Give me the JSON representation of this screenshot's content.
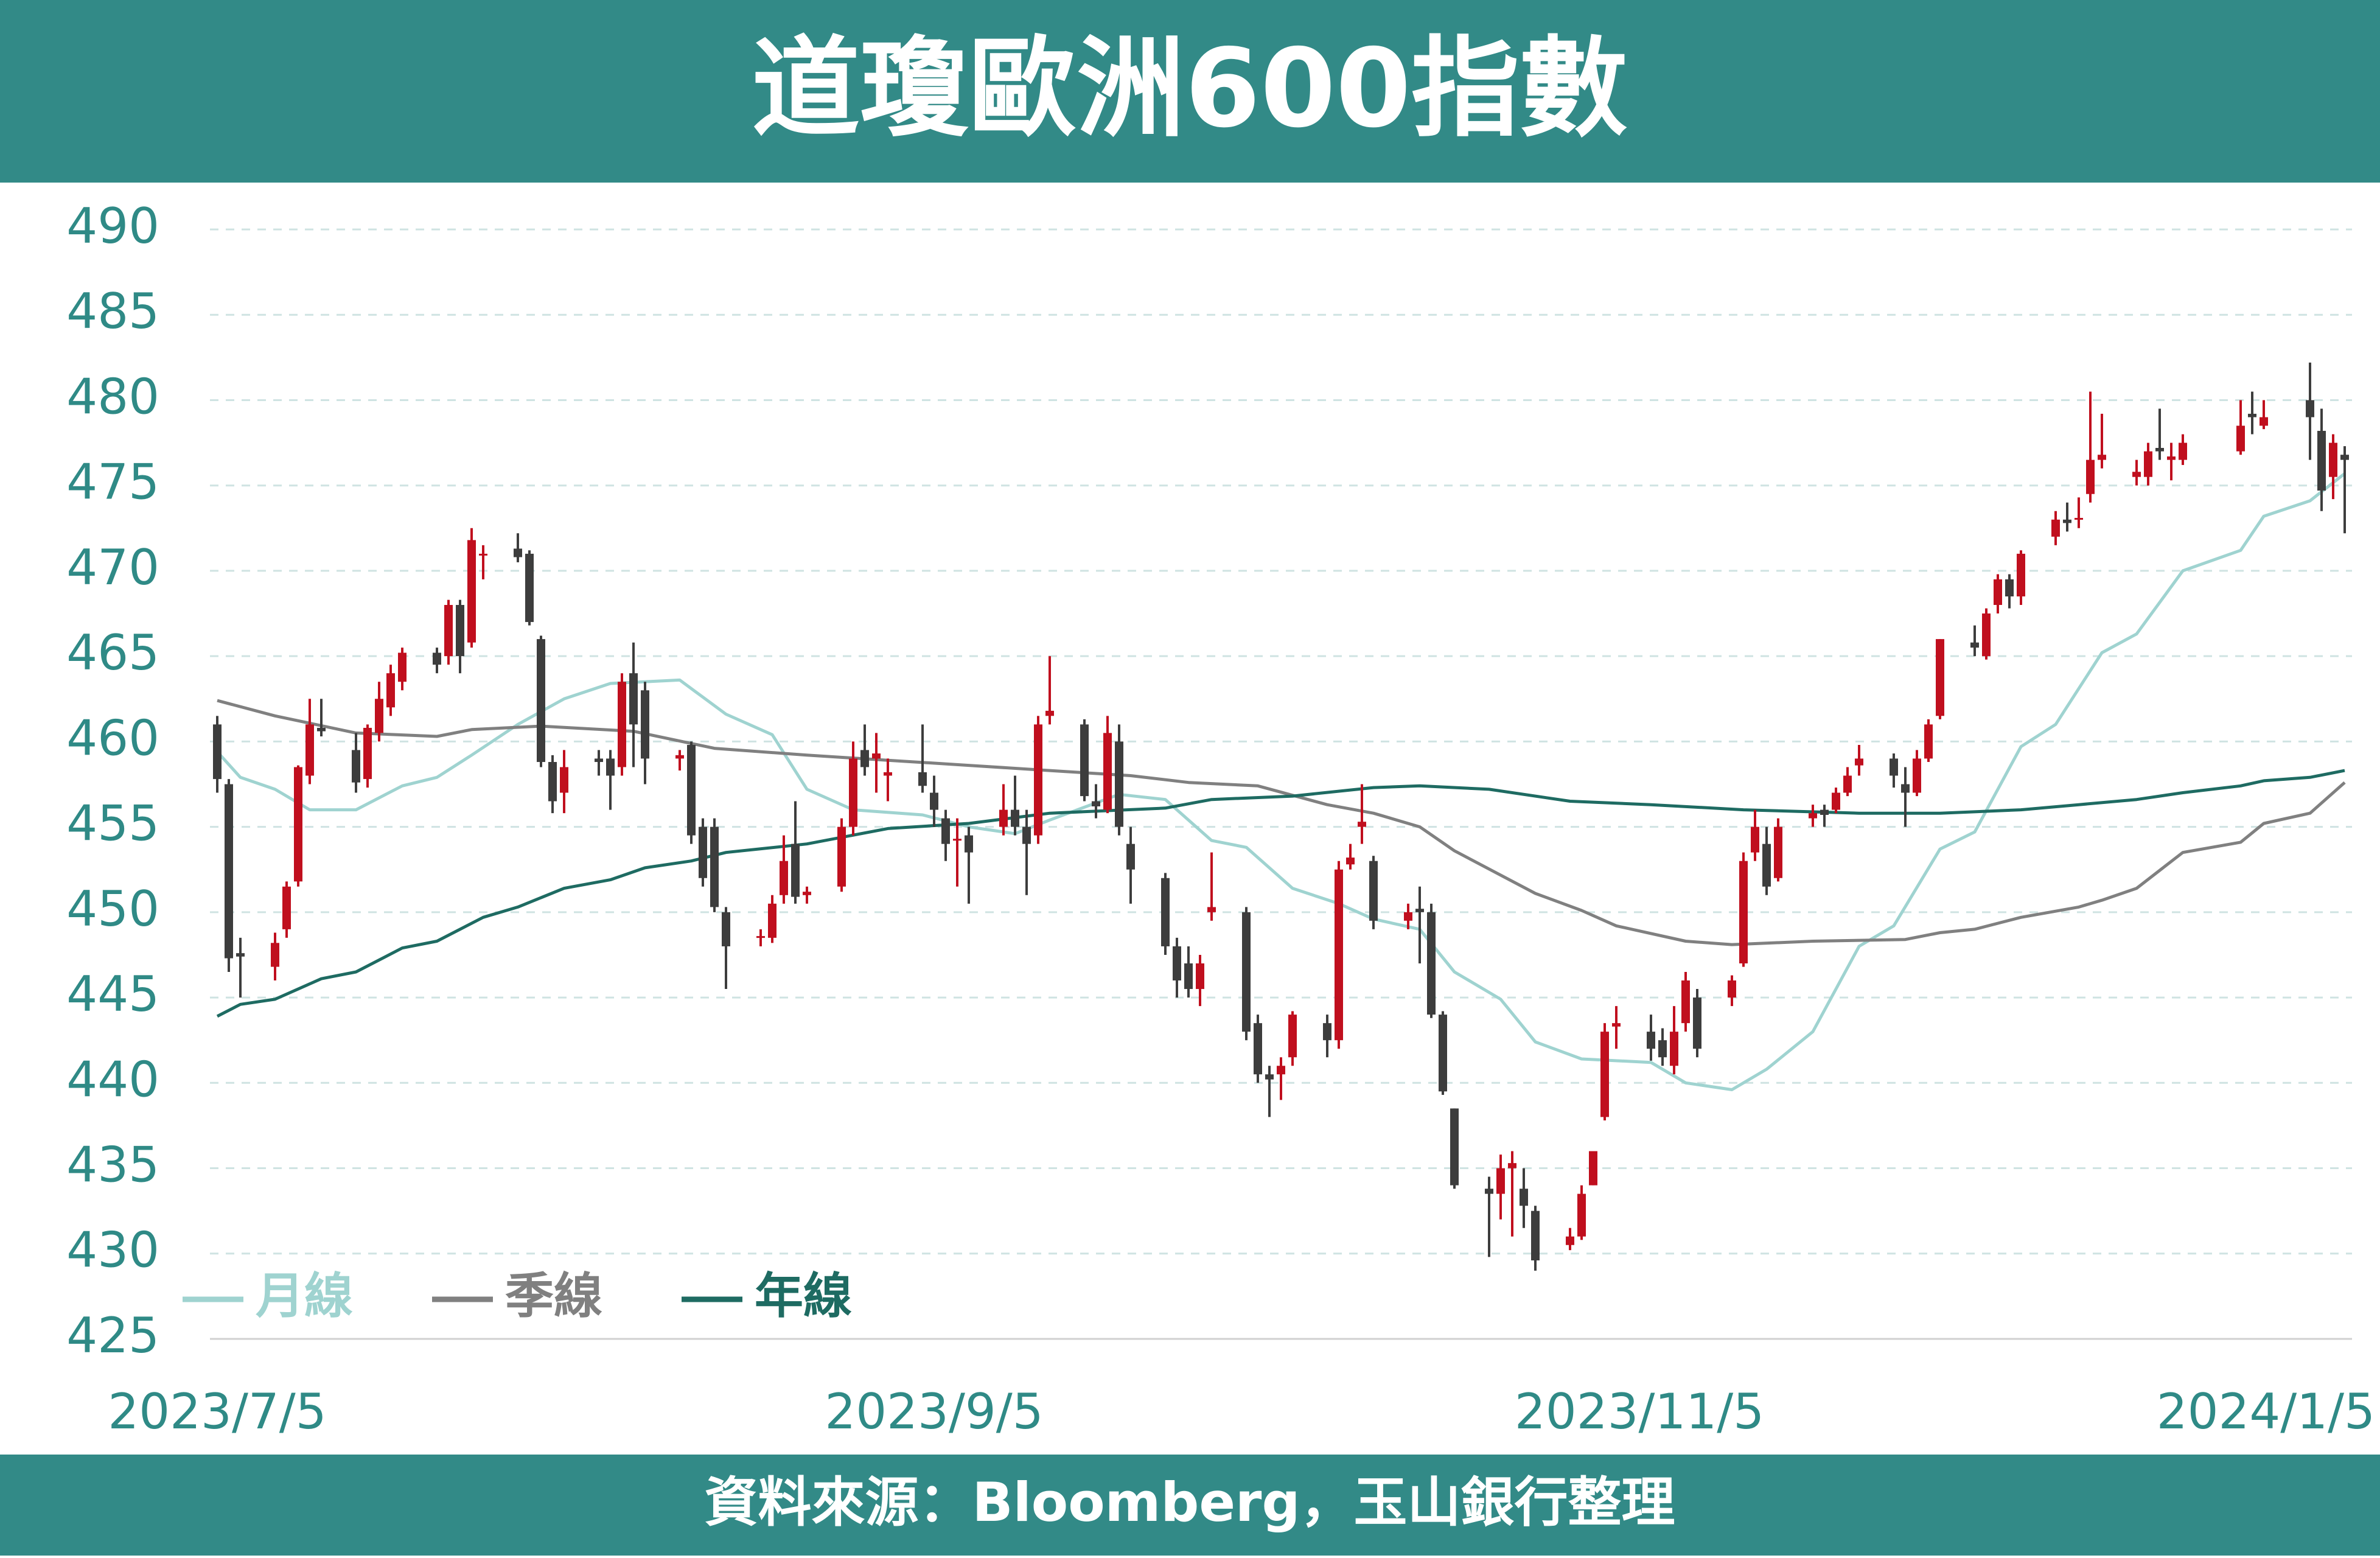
{
  "chart_data": {
    "type": "candlestick",
    "title": "道瓊歐洲600指數",
    "source": "資料來源：Bloomberg，玉山銀行整理",
    "up_color": "#c00f1e",
    "down_color": "#3d3d3d",
    "x": [
      "2023/7/5",
      "2023/7/6",
      "2023/7/7",
      "2023/7/10",
      "2023/7/11",
      "2023/7/12",
      "2023/7/13",
      "2023/7/14",
      "2023/7/17",
      "2023/7/18",
      "2023/7/19",
      "2023/7/20",
      "2023/7/21",
      "2023/7/24",
      "2023/7/25",
      "2023/7/26",
      "2023/7/27",
      "2023/7/28",
      "2023/7/31",
      "2023/8/1",
      "2023/8/2",
      "2023/8/3",
      "2023/8/4",
      "2023/8/7",
      "2023/8/8",
      "2023/8/9",
      "2023/8/10",
      "2023/8/11",
      "2023/8/14",
      "2023/8/15",
      "2023/8/16",
      "2023/8/17",
      "2023/8/18",
      "2023/8/21",
      "2023/8/22",
      "2023/8/23",
      "2023/8/24",
      "2023/8/25",
      "2023/8/28",
      "2023/8/29",
      "2023/8/30",
      "2023/8/31",
      "2023/9/1",
      "2023/9/4",
      "2023/9/5",
      "2023/9/6",
      "2023/9/7",
      "2023/9/8",
      "2023/9/11",
      "2023/9/12",
      "2023/9/13",
      "2023/9/14",
      "2023/9/15",
      "2023/9/18",
      "2023/9/19",
      "2023/9/20",
      "2023/9/21",
      "2023/9/22",
      "2023/9/25",
      "2023/9/26",
      "2023/9/27",
      "2023/9/28",
      "2023/9/29",
      "2023/10/2",
      "2023/10/3",
      "2023/10/4",
      "2023/10/5",
      "2023/10/6",
      "2023/10/9",
      "2023/10/10",
      "2023/10/11",
      "2023/10/12",
      "2023/10/13",
      "2023/10/16",
      "2023/10/17",
      "2023/10/18",
      "2023/10/19",
      "2023/10/20",
      "2023/10/23",
      "2023/10/24",
      "2023/10/25",
      "2023/10/26",
      "2023/10/27",
      "2023/10/30",
      "2023/10/31",
      "2023/11/1",
      "2023/11/2",
      "2023/11/3",
      "2023/11/6",
      "2023/11/7",
      "2023/11/8",
      "2023/11/9",
      "2023/11/10",
      "2023/11/13",
      "2023/11/14",
      "2023/11/15",
      "2023/11/16",
      "2023/11/17",
      "2023/11/20",
      "2023/11/21",
      "2023/11/22",
      "2023/11/23",
      "2023/11/24",
      "2023/11/27",
      "2023/11/28",
      "2023/11/29",
      "2023/11/30",
      "2023/12/1",
      "2023/12/4",
      "2023/12/5",
      "2023/12/6",
      "2023/12/7",
      "2023/12/8",
      "2023/12/11",
      "2023/12/12",
      "2023/12/13",
      "2023/12/14",
      "2023/12/15",
      "2023/12/18",
      "2023/12/19",
      "2023/12/20",
      "2023/12/21",
      "2023/12/22",
      "2023/12/27",
      "2023/12/28",
      "2023/12/29",
      "2024/1/2",
      "2024/1/3",
      "2024/1/4",
      "2024/1/5"
    ],
    "open": [
      461,
      457.5,
      447.6,
      446.8,
      449,
      451.8,
      458,
      460.8,
      459.5,
      457.8,
      460.5,
      462,
      463.5,
      465.2,
      465,
      468,
      465.8,
      471,
      471.3,
      471,
      466,
      458.8,
      457,
      459,
      459,
      458.5,
      464,
      463,
      459,
      459.8,
      455,
      455,
      450,
      448.5,
      448.5,
      451,
      454,
      451,
      451.5,
      455,
      459.5,
      459,
      458,
      458.2,
      457,
      455.5,
      454.2,
      454.5,
      455,
      456,
      455,
      454.5,
      461.5,
      461,
      456.5,
      456,
      460,
      454,
      452,
      448,
      447,
      445.5,
      450,
      450,
      443.5,
      440.5,
      440.5,
      441.5,
      443.5,
      442.5,
      452.8,
      455,
      453,
      449.5,
      450.2,
      450,
      444,
      438.5,
      433.8,
      433.5,
      435,
      433.8,
      432.5,
      430.5,
      431,
      434,
      438,
      443.3,
      443,
      442.5,
      441,
      443.5,
      445,
      445,
      447,
      453.5,
      454,
      452,
      455.5,
      456,
      456,
      457,
      458.6,
      459,
      457.5,
      457,
      459,
      461.5,
      465.8,
      465,
      468,
      469.5,
      468.5,
      472,
      473,
      473,
      474.5,
      476.5,
      475.5,
      475.5,
      477.2,
      476.5,
      476.5,
      477,
      479.2,
      478.5,
      480,
      478.2,
      475.5,
      476.8
    ],
    "high": [
      461.5,
      457.8,
      448.5,
      448.8,
      451.8,
      458.6,
      462.5,
      462.5,
      460.5,
      461,
      463.5,
      464.5,
      465.5,
      465.5,
      468.3,
      468.3,
      472.5,
      471.5,
      472.2,
      471.2,
      466.2,
      459.2,
      459.5,
      459.5,
      459.5,
      464,
      465.8,
      463.5,
      459.5,
      460,
      455.5,
      455.5,
      450.3,
      449,
      451,
      454.5,
      456.5,
      451.5,
      455.5,
      460,
      461,
      460.5,
      459,
      461,
      458,
      456,
      455.5,
      455,
      457.5,
      458,
      456,
      461.5,
      465,
      461.3,
      457.5,
      461.5,
      461,
      455,
      452.3,
      448.5,
      448,
      447.5,
      453.5,
      450.3,
      444,
      441,
      441.5,
      444.2,
      444,
      453,
      454,
      457.5,
      453.3,
      450.5,
      451.5,
      450.5,
      444.2,
      438.5,
      434.5,
      435.8,
      436,
      435,
      432.8,
      431.5,
      434,
      436,
      443.5,
      444.5,
      444,
      443.2,
      444.5,
      446.5,
      445.5,
      446.3,
      453.5,
      456,
      455,
      455.5,
      456.3,
      456.3,
      457.3,
      458.5,
      459.8,
      459.3,
      458.5,
      459.5,
      461.3,
      466,
      466.8,
      467.8,
      469.8,
      469.8,
      471.2,
      473.5,
      474,
      474.3,
      480.5,
      479.2,
      476.5,
      477.5,
      479.5,
      477.5,
      478,
      480,
      480.5,
      480,
      482.2,
      479.5,
      478,
      477.3
    ],
    "low": [
      457,
      446.5,
      445,
      446,
      448.5,
      451.5,
      457.5,
      460.3,
      457,
      457.3,
      460,
      461.5,
      463,
      464,
      464.5,
      464,
      465.5,
      469.5,
      470.5,
      466.8,
      458.5,
      455.8,
      455.8,
      458,
      456,
      458,
      458.5,
      457.5,
      458.3,
      454,
      451.5,
      450,
      445.5,
      448,
      448.2,
      450.5,
      450.5,
      450.5,
      451.2,
      454.5,
      458,
      457,
      456.5,
      457,
      455,
      453,
      451.5,
      450.5,
      454.5,
      454.5,
      451,
      454,
      461,
      456.5,
      455.5,
      455.8,
      454.5,
      450.5,
      447.5,
      445,
      445,
      444.5,
      449.5,
      442.5,
      440,
      438,
      439,
      441,
      441.5,
      442,
      452.5,
      454,
      449,
      449,
      447,
      443.8,
      439.3,
      433.8,
      429.8,
      432,
      431,
      431.5,
      429,
      430.2,
      430.8,
      434,
      437.8,
      442,
      441.3,
      441,
      440.5,
      443,
      441.5,
      444.5,
      446.8,
      453,
      451,
      451.8,
      455,
      455,
      455.8,
      456.8,
      458,
      457.3,
      455,
      456.8,
      458.8,
      461.3,
      465,
      464.8,
      467.5,
      467.8,
      468,
      471.5,
      472.3,
      472.5,
      474,
      476,
      475,
      475,
      476.5,
      475.3,
      476.2,
      476.8,
      478,
      478.3,
      476.5,
      473.5,
      474.2,
      472.2
    ],
    "close": [
      457.8,
      447.3,
      447.4,
      448.2,
      451.5,
      458.5,
      461,
      460.6,
      457.6,
      460.8,
      462.5,
      464,
      465.2,
      464.5,
      468,
      465,
      471.8,
      471,
      470.8,
      467,
      458.8,
      456.5,
      458.5,
      458.8,
      458,
      463.5,
      461,
      459,
      459.2,
      454.5,
      452,
      450.3,
      448,
      448.6,
      450.5,
      453,
      450.9,
      451.2,
      455,
      459,
      458.5,
      459.3,
      458.2,
      457.4,
      456,
      454,
      454.3,
      453.5,
      456,
      455,
      454,
      461,
      461.8,
      456.8,
      456.2,
      460.5,
      455,
      452.5,
      448,
      446,
      445.5,
      447,
      450.3,
      443,
      440.5,
      440.2,
      441,
      444,
      442.5,
      452.5,
      453.2,
      455.3,
      449.5,
      450,
      450,
      444,
      439.5,
      434,
      433.5,
      435,
      435.3,
      432.8,
      429.6,
      431,
      433.5,
      436,
      443,
      443.5,
      442,
      441.5,
      443,
      446,
      442,
      446,
      453,
      455,
      451.5,
      455,
      455.8,
      455.7,
      457,
      458,
      459,
      458,
      457,
      459,
      461,
      466,
      465.5,
      467.5,
      469.5,
      468.5,
      471,
      473,
      472.8,
      473.1,
      476.5,
      476.8,
      475.8,
      477,
      477,
      476.7,
      477.5,
      478.5,
      479,
      479,
      479,
      474.7,
      477.5,
      476.5
    ],
    "series": [
      {
        "name": "月線",
        "color": "#9fd3d0",
        "x": [
          "2023/7/5",
          "2023/7/7",
          "2023/7/10",
          "2023/7/13",
          "2023/7/17",
          "2023/7/21",
          "2023/7/24",
          "2023/7/27",
          "2023/7/31",
          "2023/8/4",
          "2023/8/8",
          "2023/8/14",
          "2023/8/18",
          "2023/8/22",
          "2023/8/25",
          "2023/8/29",
          "2023/9/4",
          "2023/9/8",
          "2023/9/12",
          "2023/9/15",
          "2023/9/21",
          "2023/9/25",
          "2023/9/29",
          "2023/10/2",
          "2023/10/6",
          "2023/10/10",
          "2023/10/13",
          "2023/10/17",
          "2023/10/20",
          "2023/10/24",
          "2023/10/27",
          "2023/10/31",
          "2023/11/6",
          "2023/11/9",
          "2023/11/13",
          "2023/11/16",
          "2023/11/20",
          "2023/11/24",
          "2023/11/27",
          "2023/12/1",
          "2023/12/4",
          "2023/12/8",
          "2023/12/11",
          "2023/12/15",
          "2023/12/18",
          "2023/12/22",
          "2023/12/27",
          "2023/12/29",
          "2024/1/2",
          "2024/1/5"
        ],
        "values": [
          459.4,
          457.9,
          457.2,
          456.0,
          456.0,
          457.4,
          457.9,
          459.2,
          461.0,
          462.5,
          463.4,
          463.6,
          461.6,
          460.4,
          457.2,
          456.0,
          455.7,
          455.0,
          454.6,
          455.4,
          456.9,
          456.6,
          454.2,
          453.8,
          451.4,
          450.5,
          449.6,
          449.0,
          446.5,
          444.9,
          442.4,
          441.4,
          441.2,
          440.0,
          439.6,
          440.8,
          443.0,
          448.0,
          449.2,
          453.7,
          454.7,
          459.7,
          461.0,
          465.2,
          466.3,
          470.0,
          471.2,
          473.2,
          474.1,
          475.7
        ]
      },
      {
        "name": "季線",
        "color": "#808080",
        "x": [
          "2023/7/5",
          "2023/7/10",
          "2023/7/17",
          "2023/7/24",
          "2023/7/27",
          "2023/8/2",
          "2023/8/10",
          "2023/8/17",
          "2023/8/25",
          "2023/9/1",
          "2023/9/8",
          "2023/9/15",
          "2023/9/22",
          "2023/9/27",
          "2023/10/3",
          "2023/10/9",
          "2023/10/13",
          "2023/10/17",
          "2023/10/20",
          "2023/10/27",
          "2023/10/31",
          "2023/11/3",
          "2023/11/9",
          "2023/11/13",
          "2023/11/20",
          "2023/11/28",
          "2023/12/1",
          "2023/12/4",
          "2023/12/8",
          "2023/12/13",
          "2023/12/15",
          "2023/12/18",
          "2023/12/22",
          "2023/12/27",
          "2023/12/29",
          "2024/1/2",
          "2024/1/5"
        ],
        "values": [
          462.4,
          461.5,
          460.5,
          460.3,
          460.7,
          460.9,
          460.6,
          459.6,
          459.2,
          458.9,
          458.6,
          458.3,
          458.0,
          457.6,
          457.4,
          456.3,
          455.8,
          455.0,
          453.6,
          451.1,
          450.1,
          449.2,
          448.3,
          448.1,
          448.3,
          448.4,
          448.8,
          449.0,
          449.7,
          450.3,
          450.7,
          451.4,
          453.5,
          454.1,
          455.2,
          455.8,
          457.6
        ]
      },
      {
        "name": "年線",
        "color": "#1e6b62",
        "x": [
          "2023/7/5",
          "2023/7/7",
          "2023/7/10",
          "2023/7/14",
          "2023/7/17",
          "2023/7/21",
          "2023/7/24",
          "2023/7/28",
          "2023/7/31",
          "2023/8/4",
          "2023/8/8",
          "2023/8/11",
          "2023/8/15",
          "2023/8/18",
          "2023/8/25",
          "2023/9/1",
          "2023/9/8",
          "2023/9/15",
          "2023/9/25",
          "2023/9/29",
          "2023/10/6",
          "2023/10/13",
          "2023/10/17",
          "2023/10/23",
          "2023/10/30",
          "2023/11/6",
          "2023/11/14",
          "2023/11/24",
          "2023/12/1",
          "2023/12/8",
          "2023/12/13",
          "2023/12/18",
          "2023/12/22",
          "2023/12/27",
          "2023/12/29",
          "2024/1/2",
          "2024/1/5"
        ],
        "values": [
          443.9,
          444.6,
          444.9,
          446.1,
          446.5,
          447.9,
          448.3,
          449.7,
          450.3,
          451.4,
          451.9,
          452.6,
          453.0,
          453.5,
          454.0,
          454.9,
          455.2,
          455.8,
          456.1,
          456.6,
          456.8,
          457.3,
          457.4,
          457.2,
          456.5,
          456.3,
          456.0,
          455.8,
          455.8,
          456.0,
          456.3,
          456.6,
          457.0,
          457.4,
          457.7,
          457.9,
          458.3
        ]
      }
    ],
    "xlim": [
      "2023/7/5",
      "2024/1/5"
    ],
    "xticks": [
      "2023/7/5",
      "2023/9/5",
      "2023/11/5",
      "2024/1/5"
    ],
    "ylim": [
      425,
      490
    ],
    "yticks": [
      425,
      430,
      435,
      440,
      445,
      450,
      455,
      460,
      465,
      470,
      475,
      480,
      485,
      490
    ],
    "grid": true,
    "legend": "lower left"
  }
}
